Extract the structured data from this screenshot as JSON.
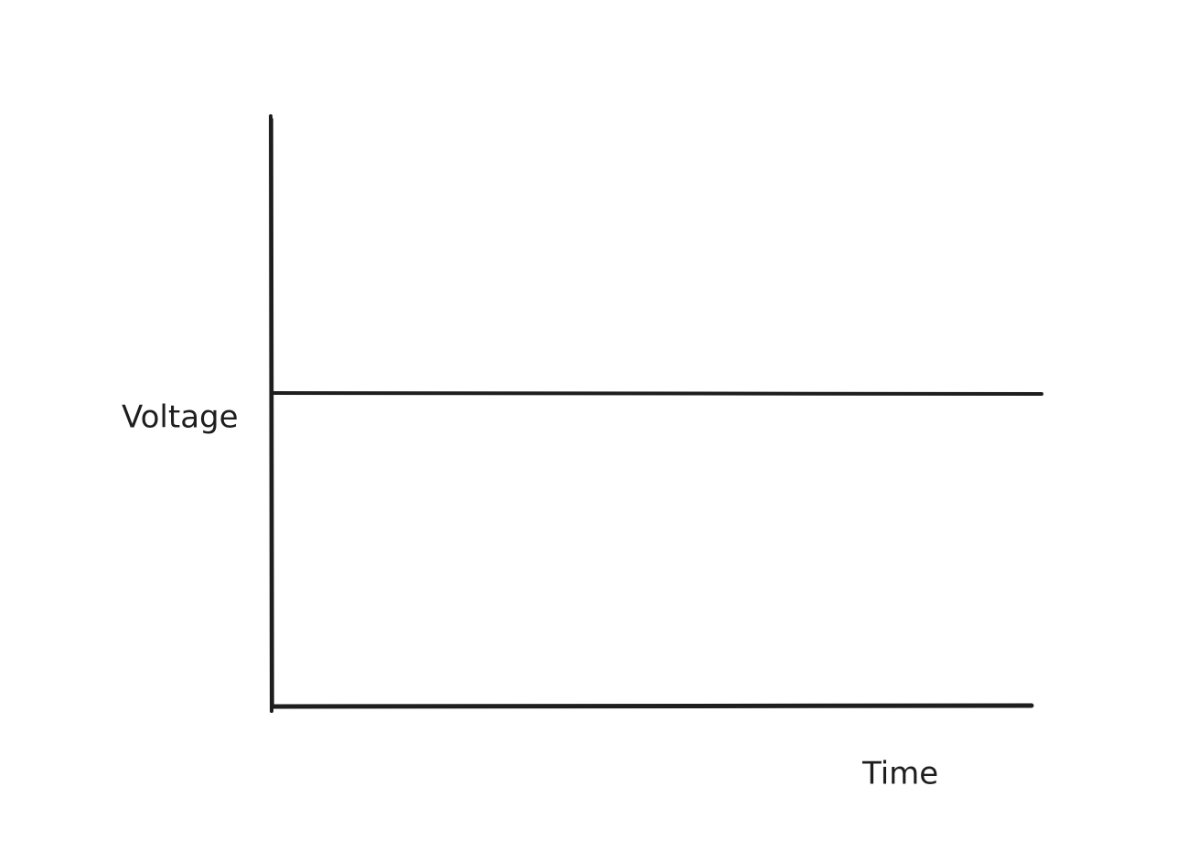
{
  "y_axis_label": "Voltage",
  "x_axis_label": "Time"
}
